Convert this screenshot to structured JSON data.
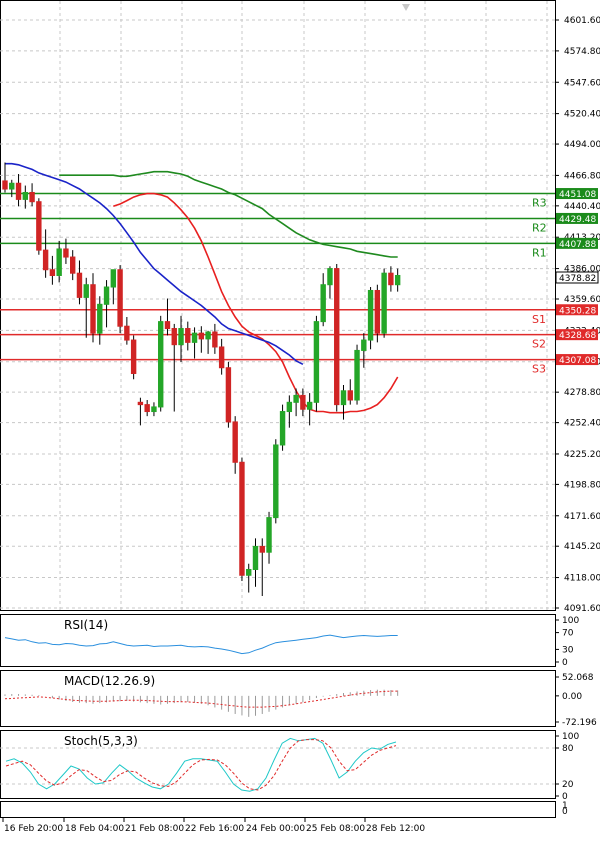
{
  "colors": {
    "bull": "#24a628",
    "bear": "#d02424",
    "green_line": "#1f8a1f",
    "red_line": "#e82020",
    "blue_line": "#1a23c8",
    "resistance": "#1b8b1b",
    "support": "#e02a2a",
    "rsi": "#2a8fde",
    "macd_signal": "#e02a2a",
    "macd_hist": "#9a9a9a",
    "stoch_main": "#1ec8c8",
    "stoch_signal": "#e02a2a",
    "background": "#ffffff"
  },
  "current_price": "4378.82",
  "chart_data": {
    "type": "candlestick",
    "price_axis_ticks": [
      "4601.60",
      "4574.80",
      "4547.60",
      "4520.40",
      "4494.00",
      "4466.80",
      "4440.40",
      "4413.20",
      "4386.00",
      "4359.60",
      "4332.40",
      "4305.20",
      "4278.80",
      "4252.40",
      "4225.20",
      "4198.80",
      "4171.60",
      "4145.20",
      "4118.00",
      "4091.60"
    ],
    "ylim": [
      4091.6,
      4601.6
    ],
    "time_labels": [
      "16 Feb 20:00",
      "18 Feb 04:00",
      "21 Feb 08:00",
      "22 Feb 16:00",
      "24 Feb 00:00",
      "25 Feb 08:00",
      "28 Feb 12:00"
    ],
    "levels": [
      {
        "name": "R3",
        "value": 4451.08,
        "label": "4451.08",
        "kind": "resistance"
      },
      {
        "name": "R2",
        "value": 4429.48,
        "label": "4429.48",
        "kind": "resistance"
      },
      {
        "name": "R1",
        "value": 4407.88,
        "label": "4407.88",
        "kind": "resistance"
      },
      {
        "name": "S1",
        "value": 4350.28,
        "label": "4350.28",
        "kind": "support"
      },
      {
        "name": "S2",
        "value": 4328.68,
        "label": "4328.68",
        "kind": "support"
      },
      {
        "name": "S3",
        "value": 4307.08,
        "label": "4307.08",
        "kind": "support"
      }
    ],
    "candles": [
      {
        "o": 4462,
        "h": 4478,
        "l": 4452,
        "c": 4455
      },
      {
        "o": 4455,
        "h": 4463,
        "l": 4448,
        "c": 4460
      },
      {
        "o": 4460,
        "h": 4468,
        "l": 4440,
        "c": 4446
      },
      {
        "o": 4446,
        "h": 4458,
        "l": 4438,
        "c": 4452
      },
      {
        "o": 4452,
        "h": 4460,
        "l": 4440,
        "c": 4444
      },
      {
        "o": 4444,
        "h": 4447,
        "l": 4398,
        "c": 4402
      },
      {
        "o": 4402,
        "h": 4420,
        "l": 4378,
        "c": 4385
      },
      {
        "o": 4385,
        "h": 4397,
        "l": 4372,
        "c": 4380
      },
      {
        "o": 4380,
        "h": 4410,
        "l": 4374,
        "c": 4403
      },
      {
        "o": 4403,
        "h": 4412,
        "l": 4390,
        "c": 4396
      },
      {
        "o": 4396,
        "h": 4402,
        "l": 4376,
        "c": 4382
      },
      {
        "o": 4382,
        "h": 4393,
        "l": 4355,
        "c": 4361
      },
      {
        "o": 4361,
        "h": 4378,
        "l": 4326,
        "c": 4372
      },
      {
        "o": 4372,
        "h": 4382,
        "l": 4322,
        "c": 4330
      },
      {
        "o": 4330,
        "h": 4362,
        "l": 4320,
        "c": 4355
      },
      {
        "o": 4355,
        "h": 4376,
        "l": 4335,
        "c": 4370
      },
      {
        "o": 4370,
        "h": 4382,
        "l": 4355,
        "c": 4385
      },
      {
        "o": 4385,
        "h": 4389,
        "l": 4330,
        "c": 4336
      },
      {
        "o": 4336,
        "h": 4344,
        "l": 4320,
        "c": 4324
      },
      {
        "o": 4324,
        "h": 4328,
        "l": 4290,
        "c": 4295
      },
      {
        "o": 4270,
        "h": 4274,
        "l": 4250,
        "c": 4268
      },
      {
        "o": 4268,
        "h": 4272,
        "l": 4258,
        "c": 4262
      },
      {
        "o": 4262,
        "h": 4270,
        "l": 4258,
        "c": 4266
      },
      {
        "o": 4266,
        "h": 4345,
        "l": 4262,
        "c": 4340
      },
      {
        "o": 4340,
        "h": 4360,
        "l": 4328,
        "c": 4334
      },
      {
        "o": 4334,
        "h": 4338,
        "l": 4262,
        "c": 4320
      },
      {
        "o": 4320,
        "h": 4345,
        "l": 4305,
        "c": 4334
      },
      {
        "o": 4334,
        "h": 4340,
        "l": 4315,
        "c": 4322
      },
      {
        "o": 4322,
        "h": 4335,
        "l": 4308,
        "c": 4330
      },
      {
        "o": 4330,
        "h": 4336,
        "l": 4313,
        "c": 4325
      },
      {
        "o": 4325,
        "h": 4332,
        "l": 4312,
        "c": 4331
      },
      {
        "o": 4331,
        "h": 4338,
        "l": 4312,
        "c": 4318
      },
      {
        "o": 4318,
        "h": 4325,
        "l": 4294,
        "c": 4300
      },
      {
        "o": 4300,
        "h": 4305,
        "l": 4248,
        "c": 4253
      },
      {
        "o": 4253,
        "h": 4258,
        "l": 4208,
        "c": 4218
      },
      {
        "o": 4218,
        "h": 4222,
        "l": 4115,
        "c": 4120
      },
      {
        "o": 4120,
        "h": 4130,
        "l": 4105,
        "c": 4125
      },
      {
        "o": 4125,
        "h": 4152,
        "l": 4110,
        "c": 4145
      },
      {
        "o": 4145,
        "h": 4152,
        "l": 4102,
        "c": 4140
      },
      {
        "o": 4140,
        "h": 4175,
        "l": 4130,
        "c": 4170
      },
      {
        "o": 4170,
        "h": 4238,
        "l": 4165,
        "c": 4233
      },
      {
        "o": 4233,
        "h": 4268,
        "l": 4228,
        "c": 4262
      },
      {
        "o": 4262,
        "h": 4276,
        "l": 4248,
        "c": 4270
      },
      {
        "o": 4270,
        "h": 4282,
        "l": 4258,
        "c": 4276
      },
      {
        "o": 4276,
        "h": 4282,
        "l": 4258,
        "c": 4264
      },
      {
        "o": 4264,
        "h": 4278,
        "l": 4250,
        "c": 4270
      },
      {
        "o": 4270,
        "h": 4345,
        "l": 4262,
        "c": 4340
      },
      {
        "o": 4340,
        "h": 4382,
        "l": 4336,
        "c": 4372
      },
      {
        "o": 4372,
        "h": 4388,
        "l": 4360,
        "c": 4386
      },
      {
        "o": 4386,
        "h": 4390,
        "l": 4262,
        "c": 4268
      },
      {
        "o": 4268,
        "h": 4285,
        "l": 4255,
        "c": 4280
      },
      {
        "o": 4280,
        "h": 4290,
        "l": 4268,
        "c": 4272
      },
      {
        "o": 4272,
        "h": 4320,
        "l": 4268,
        "c": 4315
      },
      {
        "o": 4315,
        "h": 4330,
        "l": 4300,
        "c": 4324
      },
      {
        "o": 4324,
        "h": 4370,
        "l": 4316,
        "c": 4367
      },
      {
        "o": 4367,
        "h": 4372,
        "l": 4322,
        "c": 4330
      },
      {
        "o": 4330,
        "h": 4386,
        "l": 4326,
        "c": 4382
      },
      {
        "o": 4382,
        "h": 4388,
        "l": 4366,
        "c": 4372
      },
      {
        "o": 4372,
        "h": 4386,
        "l": 4366,
        "c": 4380
      }
    ],
    "ma_green": [
      4467,
      4467,
      4467,
      4467,
      4467,
      4467,
      4467,
      4467,
      4467,
      4466,
      4466,
      4467,
      4468,
      4469,
      4470,
      4470,
      4470,
      4469,
      4468,
      4466,
      4463,
      4461,
      4459,
      4457,
      4455,
      4452,
      4450,
      4447,
      4444,
      4441,
      4438,
      4433,
      4429,
      4425,
      4421,
      4417,
      4414,
      4411,
      4409,
      4407,
      4406,
      4405,
      4404,
      4403,
      4401,
      4400,
      4399,
      4398,
      4397,
      4396,
      4396
    ],
    "ma_red": [
      4440,
      4442,
      4445,
      4448,
      4450,
      4451,
      4451,
      4450,
      4448,
      4443,
      4437,
      4430,
      4421,
      4410,
      4396,
      4381,
      4366,
      4354,
      4344,
      4336,
      4331,
      4328,
      4325,
      4320,
      4314,
      4305,
      4292,
      4280,
      4270,
      4264,
      4262,
      4262,
      4261,
      4261,
      4261,
      4262,
      4262,
      4263,
      4265,
      4268,
      4274,
      4282,
      4292
    ],
    "ma_blue": [
      4477,
      4477,
      4476,
      4474,
      4472,
      4469,
      4467,
      4465,
      4463,
      4461,
      4458,
      4455,
      4451,
      4447,
      4443,
      4438,
      4432,
      4425,
      4417,
      4409,
      4400,
      4393,
      4386,
      4381,
      4376,
      4371,
      4366,
      4362,
      4358,
      4354,
      4349,
      4344,
      4338,
      4334,
      4332,
      4330,
      4328,
      4326,
      4324,
      4322,
      4319,
      4315,
      4311,
      4306,
      4303
    ],
    "rsi": {
      "label": "RSI(14)",
      "ticks": [
        "100",
        "70",
        "30",
        "0"
      ],
      "ylim": [
        0,
        100
      ],
      "values": [
        58,
        55,
        52,
        53,
        48,
        45,
        46,
        42,
        41,
        44,
        43,
        40,
        38,
        39,
        43,
        44,
        48,
        44,
        40,
        38,
        39,
        40,
        37,
        38,
        38,
        39,
        40,
        37,
        36,
        37,
        36,
        33,
        31,
        28,
        24,
        20,
        22,
        28,
        33,
        40,
        46,
        48,
        50,
        52,
        54,
        56,
        58,
        62,
        64,
        61,
        58,
        60,
        62,
        63,
        62,
        61,
        62,
        63,
        63
      ]
    },
    "macd": {
      "label": "MACD(12.26.9)",
      "ticks": [
        "52.068",
        "0.00",
        "-72.196"
      ],
      "ylim": [
        -72.196,
        52.068
      ],
      "signal": [
        -8,
        -7,
        -6,
        -5,
        -4,
        -3,
        -4,
        -6,
        -8,
        -10,
        -12,
        -13,
        -14,
        -15,
        -15,
        -15,
        -14,
        -13,
        -12,
        -12,
        -12,
        -13,
        -14,
        -15,
        -16,
        -16,
        -16,
        -17,
        -18,
        -19,
        -20,
        -22,
        -24,
        -26,
        -28,
        -30,
        -31,
        -31,
        -31,
        -30,
        -29,
        -27,
        -25,
        -22,
        -19,
        -16,
        -13,
        -10,
        -7,
        -4,
        -1,
        2,
        5,
        7,
        9,
        11,
        12,
        13,
        13
      ],
      "hist": [
        4,
        5,
        5,
        4,
        3,
        2,
        0,
        -6,
        -10,
        -14,
        -17,
        -19,
        -20,
        -22,
        -20,
        -18,
        -16,
        -15,
        -14,
        -16,
        -18,
        -20,
        -22,
        -24,
        -22,
        -20,
        -18,
        -17,
        -19,
        -22,
        -26,
        -32,
        -38,
        -44,
        -50,
        -54,
        -58,
        -55,
        -50,
        -44,
        -38,
        -32,
        -26,
        -22,
        -18,
        -12,
        -6,
        -2,
        2,
        5,
        8,
        10,
        12,
        14,
        16,
        17,
        17,
        16,
        15
      ]
    },
    "stoch": {
      "label": "Stoch(5,3,3)",
      "ticks": [
        "100",
        "80",
        "20",
        "0"
      ],
      "ylim": [
        0,
        100
      ],
      "main": [
        58,
        62,
        55,
        40,
        20,
        12,
        20,
        35,
        50,
        45,
        30,
        20,
        22,
        38,
        52,
        42,
        30,
        22,
        15,
        12,
        20,
        38,
        58,
        62,
        62,
        60,
        58,
        40,
        20,
        10,
        8,
        12,
        30,
        60,
        88,
        96,
        92,
        94,
        96,
        88,
        60,
        30,
        40,
        58,
        72,
        80,
        78,
        86,
        90
      ],
      "signal": [
        50,
        54,
        58,
        52,
        38,
        25,
        18,
        22,
        34,
        44,
        42,
        32,
        24,
        26,
        36,
        42,
        40,
        30,
        22,
        17,
        16,
        24,
        38,
        52,
        60,
        61,
        60,
        52,
        38,
        22,
        12,
        10,
        18,
        34,
        58,
        80,
        92,
        94,
        94,
        92,
        80,
        58,
        42,
        44,
        56,
        68,
        76,
        80,
        84
      ]
    },
    "bottom_panel_ticks": [
      "1",
      "0"
    ]
  }
}
